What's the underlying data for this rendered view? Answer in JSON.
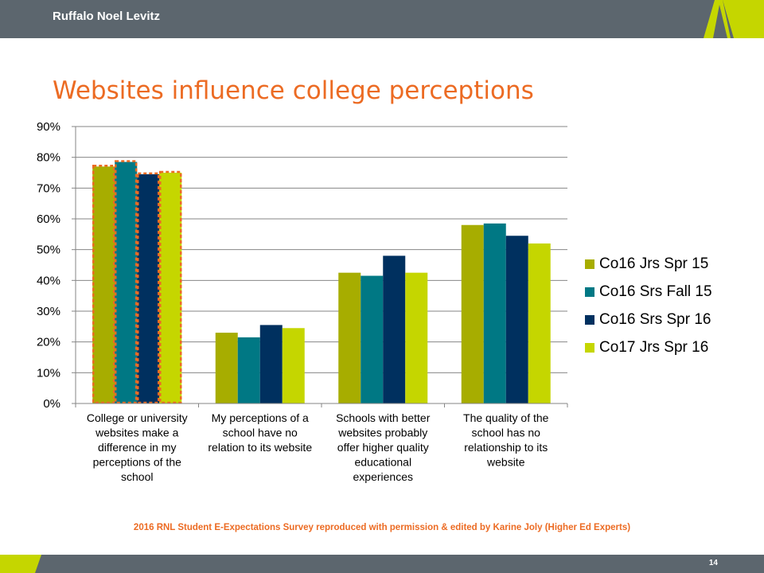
{
  "header": {
    "brand": "Ruffalo Noel Levitz"
  },
  "slide": {
    "title": "Websites influence college perceptions",
    "footnote": "2016 RNL Student E-Expectations Survey reproduced with permission & edited by Karine Joly (Higher Ed Experts)",
    "page_number": "14"
  },
  "colors": {
    "bar": "#5c666e",
    "accent": "#ec6b23",
    "lime": "#c5d600"
  },
  "chart_data": {
    "type": "bar",
    "title": "",
    "xlabel": "",
    "ylabel": "",
    "ylim": [
      0,
      90
    ],
    "ytick_labels": [
      "0%",
      "10%",
      "20%",
      "30%",
      "40%",
      "50%",
      "60%",
      "70%",
      "80%",
      "90%"
    ],
    "grid": true,
    "legend_position": "right",
    "categories": [
      "College or university websites make a difference in my perceptions of the school",
      "My perceptions of a school have no relation to its website",
      "Schools with better websites probably offer higher quality educational experiences",
      "The quality of the school has no relationship to its website"
    ],
    "category_label_lines": [
      [
        "College or university",
        "websites make a",
        "difference in my",
        "perceptions of the",
        "school"
      ],
      [
        "My perceptions of a",
        "school have no",
        "relation to its website"
      ],
      [
        "Schools with better",
        "websites probably",
        "offer higher quality",
        "educational",
        "experiences"
      ],
      [
        "The quality of the",
        "school has no",
        "relationship to its",
        "website"
      ]
    ],
    "series": [
      {
        "name": "Co16 Jrs Spr 15",
        "color": "#a7ad00",
        "values": [
          77,
          23,
          42.5,
          58
        ]
      },
      {
        "name": "Co16 Srs Fall 15",
        "color": "#007884",
        "values": [
          78.5,
          21.5,
          41.5,
          58.5
        ]
      },
      {
        "name": "Co16 Srs Spr 16",
        "color": "#00305f",
        "values": [
          74.5,
          25.5,
          48,
          54.5
        ]
      },
      {
        "name": "Co17 Jrs Spr 16",
        "color": "#c5d600",
        "values": [
          75,
          24.5,
          42.5,
          52
        ]
      }
    ],
    "highlighted_category": 0
  }
}
